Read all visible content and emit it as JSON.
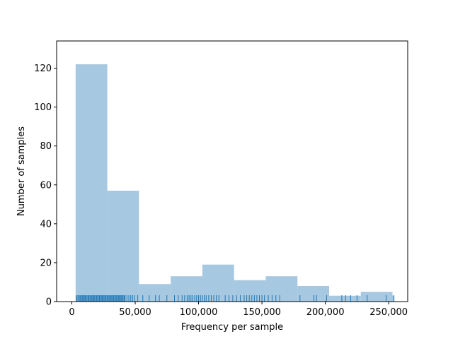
{
  "chart_data": {
    "type": "bar",
    "subtype": "histogram-with-rug",
    "xlabel": "Frequency per sample",
    "ylabel": "Number of samples",
    "xlim": [
      -12000,
      265000
    ],
    "ylim": [
      0,
      134
    ],
    "x_ticks": [
      {
        "value": 0,
        "label": "0"
      },
      {
        "value": 50000,
        "label": "50,000"
      },
      {
        "value": 100000,
        "label": "100,000"
      },
      {
        "value": 150000,
        "label": "150,000"
      },
      {
        "value": 200000,
        "label": "200,000"
      },
      {
        "value": 250000,
        "label": "250,000"
      }
    ],
    "y_ticks": [
      {
        "value": 0,
        "label": "0"
      },
      {
        "value": 20,
        "label": "20"
      },
      {
        "value": 40,
        "label": "40"
      },
      {
        "value": 60,
        "label": "60"
      },
      {
        "value": 80,
        "label": "80"
      },
      {
        "value": 100,
        "label": "100"
      },
      {
        "value": 120,
        "label": "120"
      }
    ],
    "bins": [
      {
        "start": 3000,
        "end": 28000,
        "count": 122
      },
      {
        "start": 28000,
        "end": 53000,
        "count": 57
      },
      {
        "start": 53000,
        "end": 78000,
        "count": 9
      },
      {
        "start": 78000,
        "end": 103000,
        "count": 13
      },
      {
        "start": 103000,
        "end": 128000,
        "count": 19
      },
      {
        "start": 128000,
        "end": 153000,
        "count": 11
      },
      {
        "start": 153000,
        "end": 178000,
        "count": 13
      },
      {
        "start": 178000,
        "end": 203000,
        "count": 8
      },
      {
        "start": 203000,
        "end": 228000,
        "count": 3
      },
      {
        "start": 228000,
        "end": 253000,
        "count": 5
      },
      {
        "start": 253000,
        "end": 254500,
        "count": 3
      }
    ],
    "rug_values": [
      3500,
      4200,
      5100,
      6000,
      6800,
      7500,
      8300,
      9000,
      9800,
      10500,
      11200,
      12000,
      12800,
      13500,
      14300,
      15000,
      15800,
      16500,
      17300,
      18000,
      18800,
      19500,
      20300,
      21000,
      21800,
      22500,
      23300,
      24000,
      24800,
      25500,
      26300,
      27000,
      27800,
      28500,
      29300,
      30000,
      30800,
      31500,
      32300,
      33000,
      33800,
      34500,
      35300,
      36000,
      36800,
      37500,
      38300,
      39000,
      39800,
      40500,
      41300,
      42000,
      43500,
      45000,
      46500,
      48000,
      49500,
      52000,
      56000,
      61000,
      66000,
      69000,
      75000,
      81000,
      84000,
      87000,
      89000,
      91000,
      92500,
      94000,
      95500,
      97000,
      98500,
      100000,
      101500,
      103000,
      104500,
      106000,
      108000,
      110000,
      112000,
      114000,
      116000,
      121000,
      124000,
      127000,
      130000,
      133000,
      136000,
      138000,
      140000,
      142000,
      144000,
      146000,
      148000,
      150000,
      152000,
      155000,
      158000,
      161000,
      164000,
      180000,
      191000,
      193000,
      201000,
      213000,
      216000,
      220000,
      225000,
      233000,
      248000,
      254000
    ],
    "colors": {
      "bar": "#a6c8e0",
      "rug": "#1f77b4",
      "axes": "#000000"
    },
    "grid": false
  }
}
